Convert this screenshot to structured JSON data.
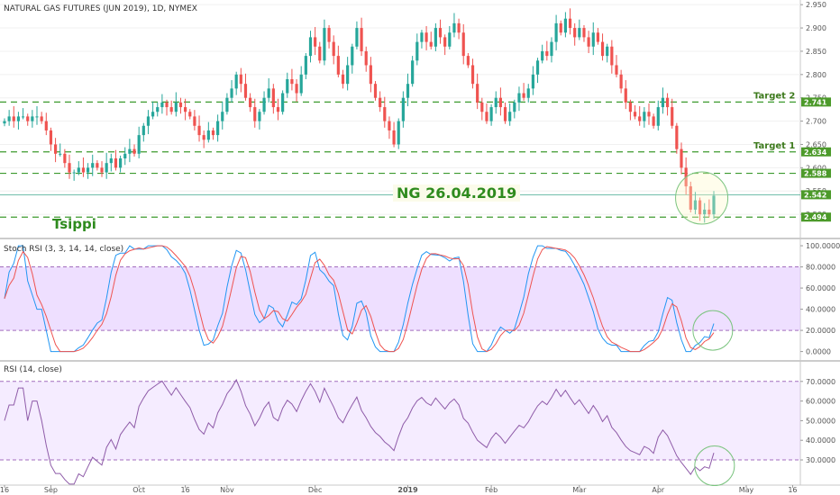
{
  "chart_data": [
    {
      "type": "candlestick",
      "title": "NATURAL GAS FUTURES (JUN 2019), 1D, NYMEX",
      "annotation": "NG 26.04.2019",
      "author_label": "Tsippi",
      "ylim": [
        2.45,
        2.96
      ],
      "y_ticks": [
        "2.950",
        "2.900",
        "2.850",
        "2.800",
        "2.750",
        "2.700",
        "2.650",
        "2.600",
        "2.550",
        "2.500"
      ],
      "price_badges": [
        {
          "label": "2.741",
          "value": 2.741
        },
        {
          "label": "2.588",
          "value": 2.588
        },
        {
          "label": "2.634",
          "value": 2.634
        },
        {
          "label": "2.542",
          "value": 2.542
        },
        {
          "label": "2.494",
          "value": 2.494
        }
      ],
      "levels": [
        {
          "value": 2.741,
          "label": "Target 2"
        },
        {
          "value": 2.634,
          "label": "Target 1"
        },
        {
          "value": 2.588,
          "label": ""
        },
        {
          "value": 2.494,
          "label": ""
        }
      ],
      "current_price": 2.542,
      "x_labels": [
        "16",
        "Sep",
        "Oct",
        "16",
        "Nov",
        "Dec",
        "2019",
        "Feb",
        "Mar",
        "Apr",
        "May",
        "16"
      ],
      "x_label_bars": [
        0,
        10,
        29,
        39,
        48,
        67,
        87,
        105,
        124,
        141,
        160,
        170
      ],
      "closes": [
        2.7,
        2.71,
        2.7,
        2.71,
        2.71,
        2.7,
        2.71,
        2.71,
        2.7,
        2.68,
        2.65,
        2.63,
        2.63,
        2.61,
        2.59,
        2.59,
        2.6,
        2.59,
        2.6,
        2.61,
        2.6,
        2.59,
        2.61,
        2.62,
        2.6,
        2.62,
        2.63,
        2.64,
        2.63,
        2.67,
        2.69,
        2.71,
        2.72,
        2.73,
        2.74,
        2.73,
        2.72,
        2.74,
        2.73,
        2.72,
        2.71,
        2.69,
        2.67,
        2.66,
        2.68,
        2.67,
        2.7,
        2.72,
        2.75,
        2.77,
        2.8,
        2.78,
        2.75,
        2.73,
        2.7,
        2.72,
        2.75,
        2.77,
        2.73,
        2.72,
        2.76,
        2.79,
        2.78,
        2.76,
        2.8,
        2.84,
        2.88,
        2.86,
        2.83,
        2.9,
        2.87,
        2.84,
        2.8,
        2.78,
        2.82,
        2.86,
        2.9,
        2.85,
        2.82,
        2.78,
        2.75,
        2.73,
        2.7,
        2.68,
        2.65,
        2.7,
        2.75,
        2.78,
        2.83,
        2.87,
        2.89,
        2.87,
        2.86,
        2.9,
        2.88,
        2.86,
        2.89,
        2.91,
        2.89,
        2.84,
        2.82,
        2.78,
        2.74,
        2.72,
        2.7,
        2.73,
        2.75,
        2.73,
        2.7,
        2.72,
        2.74,
        2.76,
        2.75,
        2.77,
        2.8,
        2.83,
        2.85,
        2.84,
        2.87,
        2.91,
        2.89,
        2.92,
        2.9,
        2.88,
        2.9,
        2.88,
        2.86,
        2.89,
        2.87,
        2.84,
        2.86,
        2.82,
        2.8,
        2.77,
        2.74,
        2.72,
        2.71,
        2.7,
        2.72,
        2.71,
        2.69,
        2.73,
        2.75,
        2.73,
        2.69,
        2.64,
        2.6,
        2.56,
        2.51,
        2.53,
        2.5,
        2.51,
        2.5,
        2.54
      ],
      "stoch_rsi": {
        "title": "Stoch RSI (3, 3, 14, 14, close)",
        "ylim": [
          -8,
          106
        ],
        "y_ticks": [
          "100.0000",
          "80.0000",
          "60.0000",
          "40.0000",
          "20.0000",
          "0.0000"
        ],
        "band": [
          20,
          80
        ],
        "k_color": "#2196f3",
        "d_color": "#ef5350"
      },
      "rsi": {
        "title": "RSI (14, close)",
        "ylim": [
          19,
          80
        ],
        "y_ticks": [
          "70.0000",
          "60.0000",
          "50.0000",
          "40.0000",
          "30.0000"
        ],
        "band": [
          30,
          70
        ],
        "line_color": "#8e5ba8"
      },
      "colors": {
        "up": "#26a69a",
        "down": "#ef5350",
        "level": "#3c9a2e",
        "badge": "#4c9a2a",
        "current": "#43a88f",
        "band": "#e2c9ff",
        "highlight_circle": "#7bc47f"
      }
    }
  ]
}
